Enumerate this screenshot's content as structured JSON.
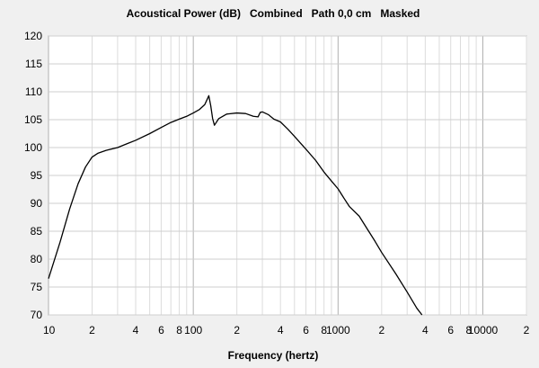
{
  "chart_data": {
    "type": "line",
    "title": "Acoustical Power (dB)   Combined   Path 0,0 cm   Masked",
    "xlabel": "Frequency (hertz)",
    "ylabel": "",
    "x_scale": "log",
    "xlim": [
      10,
      20000
    ],
    "ylim": [
      70,
      120
    ],
    "y_ticks": [
      70,
      75,
      80,
      85,
      90,
      95,
      100,
      105,
      110,
      115,
      120
    ],
    "x_tick_labels": [
      {
        "value": 10,
        "label": "10"
      },
      {
        "value": 20,
        "label": "2"
      },
      {
        "value": 40,
        "label": "4"
      },
      {
        "value": 60,
        "label": "6"
      },
      {
        "value": 80,
        "label": "8"
      },
      {
        "value": 100,
        "label": "100"
      },
      {
        "value": 200,
        "label": "2"
      },
      {
        "value": 400,
        "label": "4"
      },
      {
        "value": 600,
        "label": "6"
      },
      {
        "value": 800,
        "label": "8"
      },
      {
        "value": 1000,
        "label": "1000"
      },
      {
        "value": 2000,
        "label": "2"
      },
      {
        "value": 4000,
        "label": "4"
      },
      {
        "value": 6000,
        "label": "6"
      },
      {
        "value": 8000,
        "label": "8"
      },
      {
        "value": 10000,
        "label": "10000"
      },
      {
        "value": 20000,
        "label": "2"
      }
    ],
    "grid": true,
    "series": [
      {
        "color": "#000000",
        "x": [
          10,
          12,
          14,
          16,
          18,
          20,
          22,
          25,
          30,
          35,
          40,
          50,
          60,
          70,
          80,
          90,
          100,
          110,
          120,
          125,
          128,
          132,
          136,
          140,
          150,
          170,
          200,
          230,
          260,
          280,
          290,
          300,
          330,
          360,
          400,
          450,
          500,
          550,
          600,
          700,
          800,
          900,
          1000,
          1100,
          1200,
          1400,
          1600,
          1800,
          2000,
          2500,
          3000,
          3500,
          3800
        ],
        "y": [
          76.5,
          83,
          89,
          93.5,
          96.5,
          98.3,
          99,
          99.5,
          100,
          100.7,
          101.3,
          102.5,
          103.6,
          104.5,
          105.1,
          105.6,
          106.2,
          106.8,
          107.7,
          108.7,
          109.3,
          107.5,
          105.2,
          104,
          105.2,
          106,
          106.2,
          106.1,
          105.6,
          105.5,
          106.3,
          106.4,
          105.9,
          105.1,
          104.6,
          103.3,
          102,
          100.8,
          99.7,
          97.7,
          95.6,
          94,
          92.6,
          90.9,
          89.4,
          87.7,
          85.3,
          83.2,
          81.2,
          77.4,
          74.1,
          71.2,
          70
        ]
      }
    ]
  }
}
